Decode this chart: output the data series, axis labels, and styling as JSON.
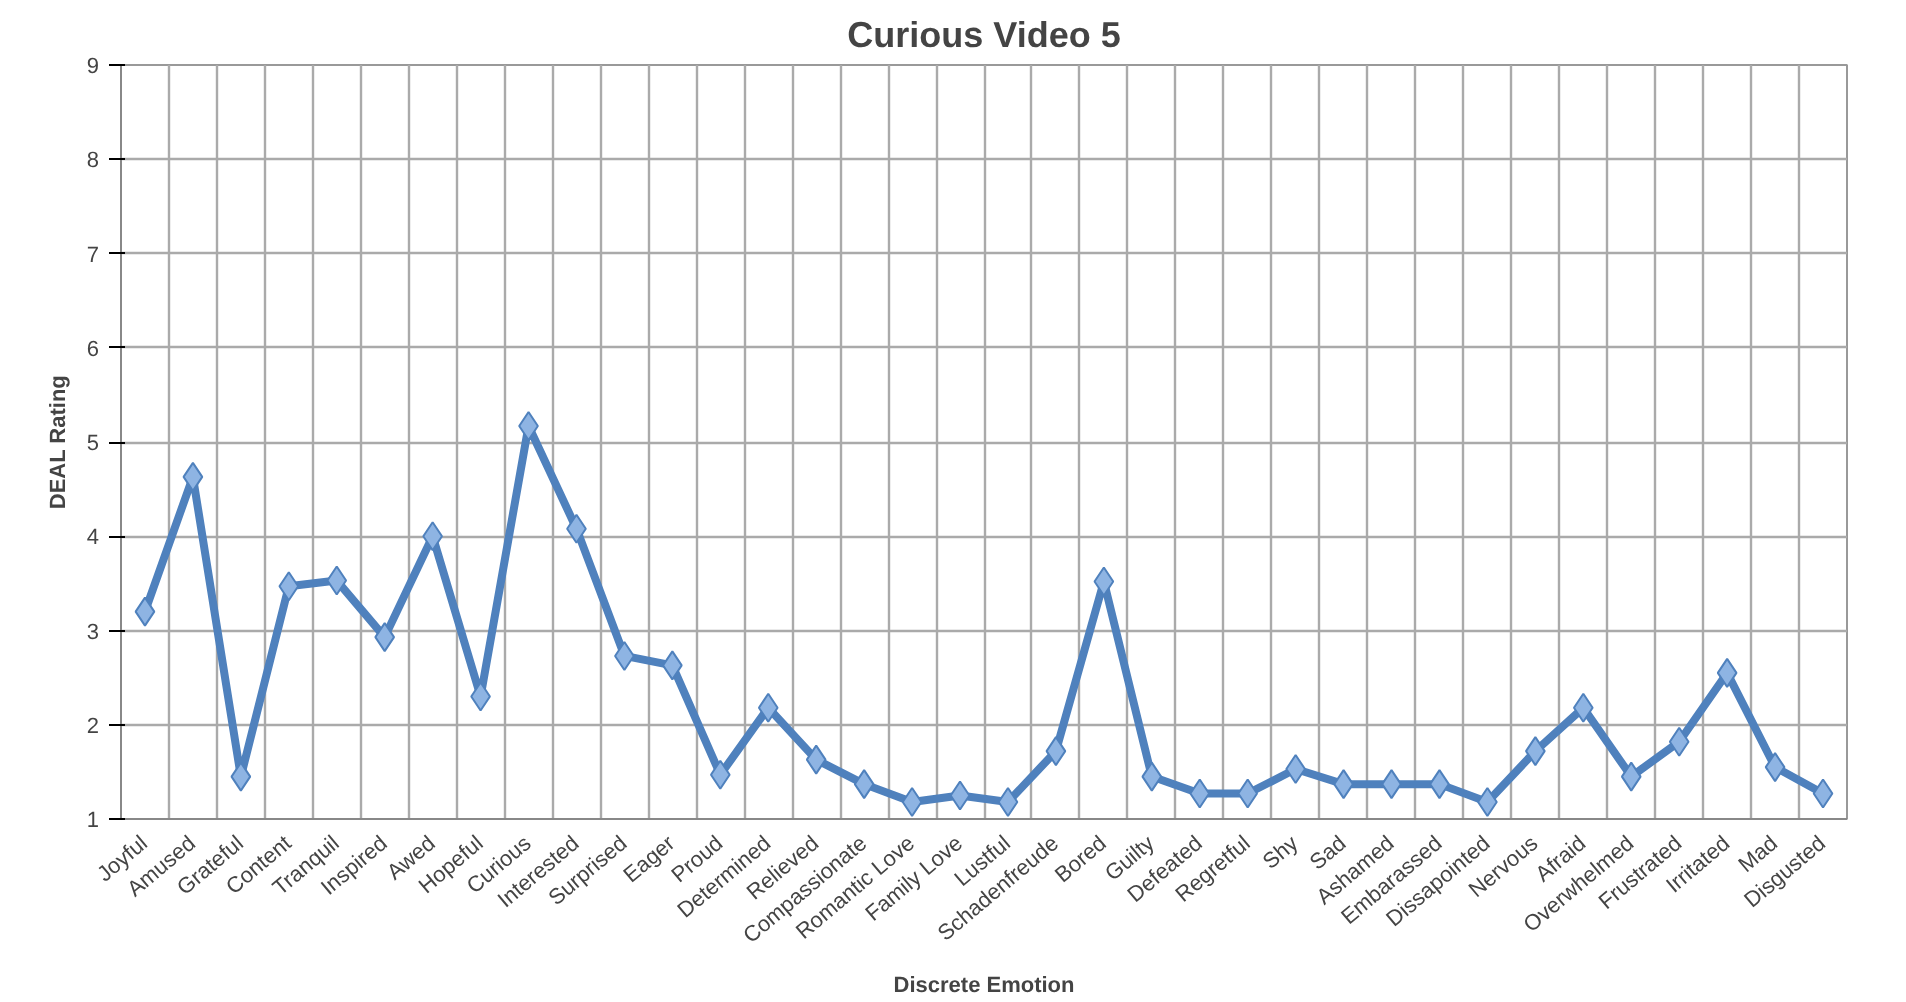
{
  "chart_data": {
    "type": "line",
    "title": "Curious Video 5",
    "xlabel": "Discrete Emotion",
    "ylabel": "DEAL Rating",
    "categories": [
      "Joyful",
      "Amused",
      "Grateful",
      "Content",
      "Tranquil",
      "Inspired",
      "Awed",
      "Hopeful",
      "Curious",
      "Interested",
      "Surprised",
      "Eager",
      "Proud",
      "Determined",
      "Relieved",
      "Compassionate",
      "Romantic Love",
      "Family Love",
      "Lustful",
      "Schadenfreude",
      "Bored",
      "Guilty",
      "Defeated",
      "Regretful",
      "Shy",
      "Sad",
      "Ashamed",
      "Embarassed",
      "Dissapointed",
      "Nervous",
      "Afraid",
      "Overwhelmed",
      "Frustrated",
      "Irritated",
      "Mad",
      "Disgusted"
    ],
    "series": [
      {
        "color": "#4f81bd",
        "values": [
          3.2,
          4.63,
          1.45,
          3.47,
          3.53,
          2.93,
          4.0,
          2.3,
          5.17,
          4.08,
          2.73,
          2.63,
          1.47,
          2.18,
          1.63,
          1.37,
          1.18,
          1.25,
          1.18,
          1.72,
          3.52,
          1.45,
          1.27,
          1.27,
          1.53,
          1.37,
          1.37,
          1.37,
          1.18,
          1.72,
          2.18,
          1.45,
          1.82,
          2.55,
          1.55,
          1.27
        ]
      }
    ],
    "ylim": [
      1,
      9
    ],
    "yticks": [
      1,
      2,
      3,
      4,
      5,
      6,
      7,
      8,
      9
    ],
    "grid": true,
    "marker": "diamond",
    "line_style": "solid"
  }
}
